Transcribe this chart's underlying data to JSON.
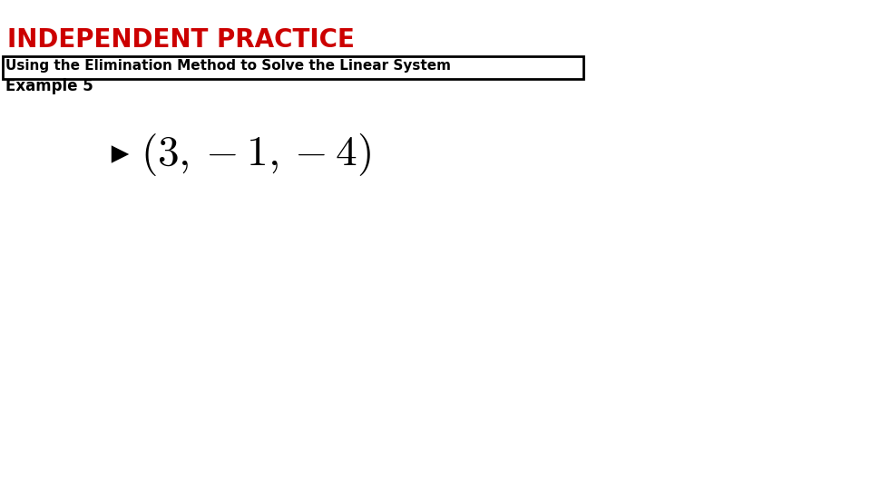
{
  "title": "INDEPENDENT PRACTICE",
  "title_color": "#cc0000",
  "title_fontsize": 20,
  "title_weight": "bold",
  "subtitle": "Using the Elimination Method to Solve the Linear System",
  "subtitle_fontsize": 11,
  "subtitle_weight": "bold",
  "subtitle_color": "#000000",
  "example_label": "Example 5",
  "example_fontsize": 12,
  "example_weight": "bold",
  "example_color": "#000000",
  "answer_fontsize": 34,
  "answer_color": "#000000",
  "background_color": "#ffffff",
  "arrow_color": "#000000",
  "box_color": "#000000",
  "fig_width": 9.6,
  "fig_height": 5.4,
  "dpi": 100
}
